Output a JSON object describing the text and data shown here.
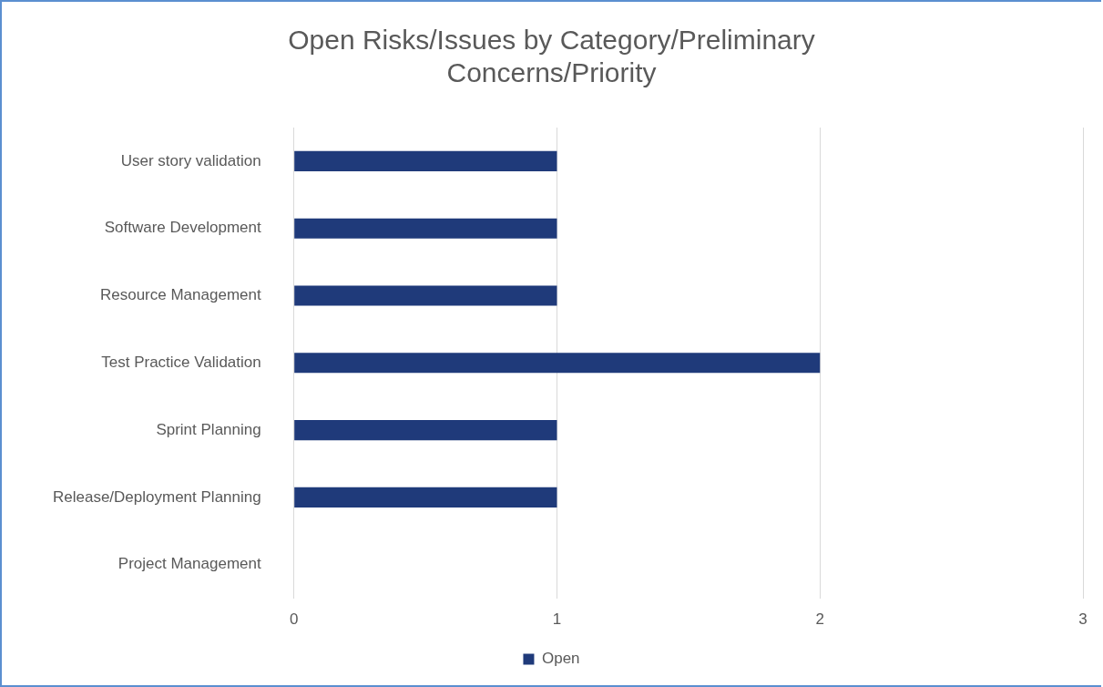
{
  "chart_data": {
    "type": "bar",
    "orientation": "horizontal",
    "title": "Open Risks/Issues by Category/Preliminary Concerns/Priority",
    "categories": [
      "User story validation",
      "Software Development",
      "Resource Management",
      "Test Practice Validation",
      "Sprint Planning",
      "Release/Deployment Planning",
      "Project Management"
    ],
    "series": [
      {
        "name": "Open",
        "color": "#1f3a7a",
        "values": [
          1,
          1,
          1,
          2,
          1,
          1,
          0
        ]
      }
    ],
    "xlim": [
      0,
      3
    ],
    "xticks": [
      0,
      1,
      2,
      3
    ],
    "grid": "x",
    "legend": "bottom"
  }
}
